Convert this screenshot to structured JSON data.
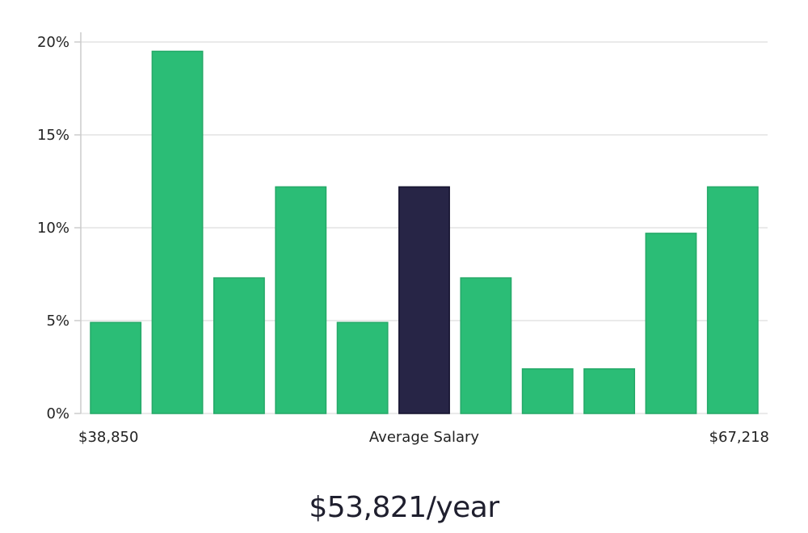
{
  "chart_data": {
    "type": "bar",
    "title": "",
    "xlabel": "Average Salary",
    "ylabel": "",
    "x_min_label": "$38,850",
    "x_max_label": "$67,218",
    "ylim": [
      0,
      20
    ],
    "yticks": [
      0,
      5,
      10,
      15,
      20
    ],
    "ytick_labels": [
      "0%",
      "5%",
      "10%",
      "15%",
      "20%"
    ],
    "grid": true,
    "values": [
      4.9,
      19.5,
      7.3,
      12.2,
      4.9,
      12.2,
      7.3,
      2.4,
      2.4,
      9.7,
      12.2
    ],
    "highlight_index": 5,
    "colors": {
      "bar": "#2bbd76",
      "highlight": "#272546",
      "grid": "#e3e3e3",
      "axis": "#cccccc"
    }
  },
  "summary": {
    "salary_text": "$53,821/year"
  }
}
